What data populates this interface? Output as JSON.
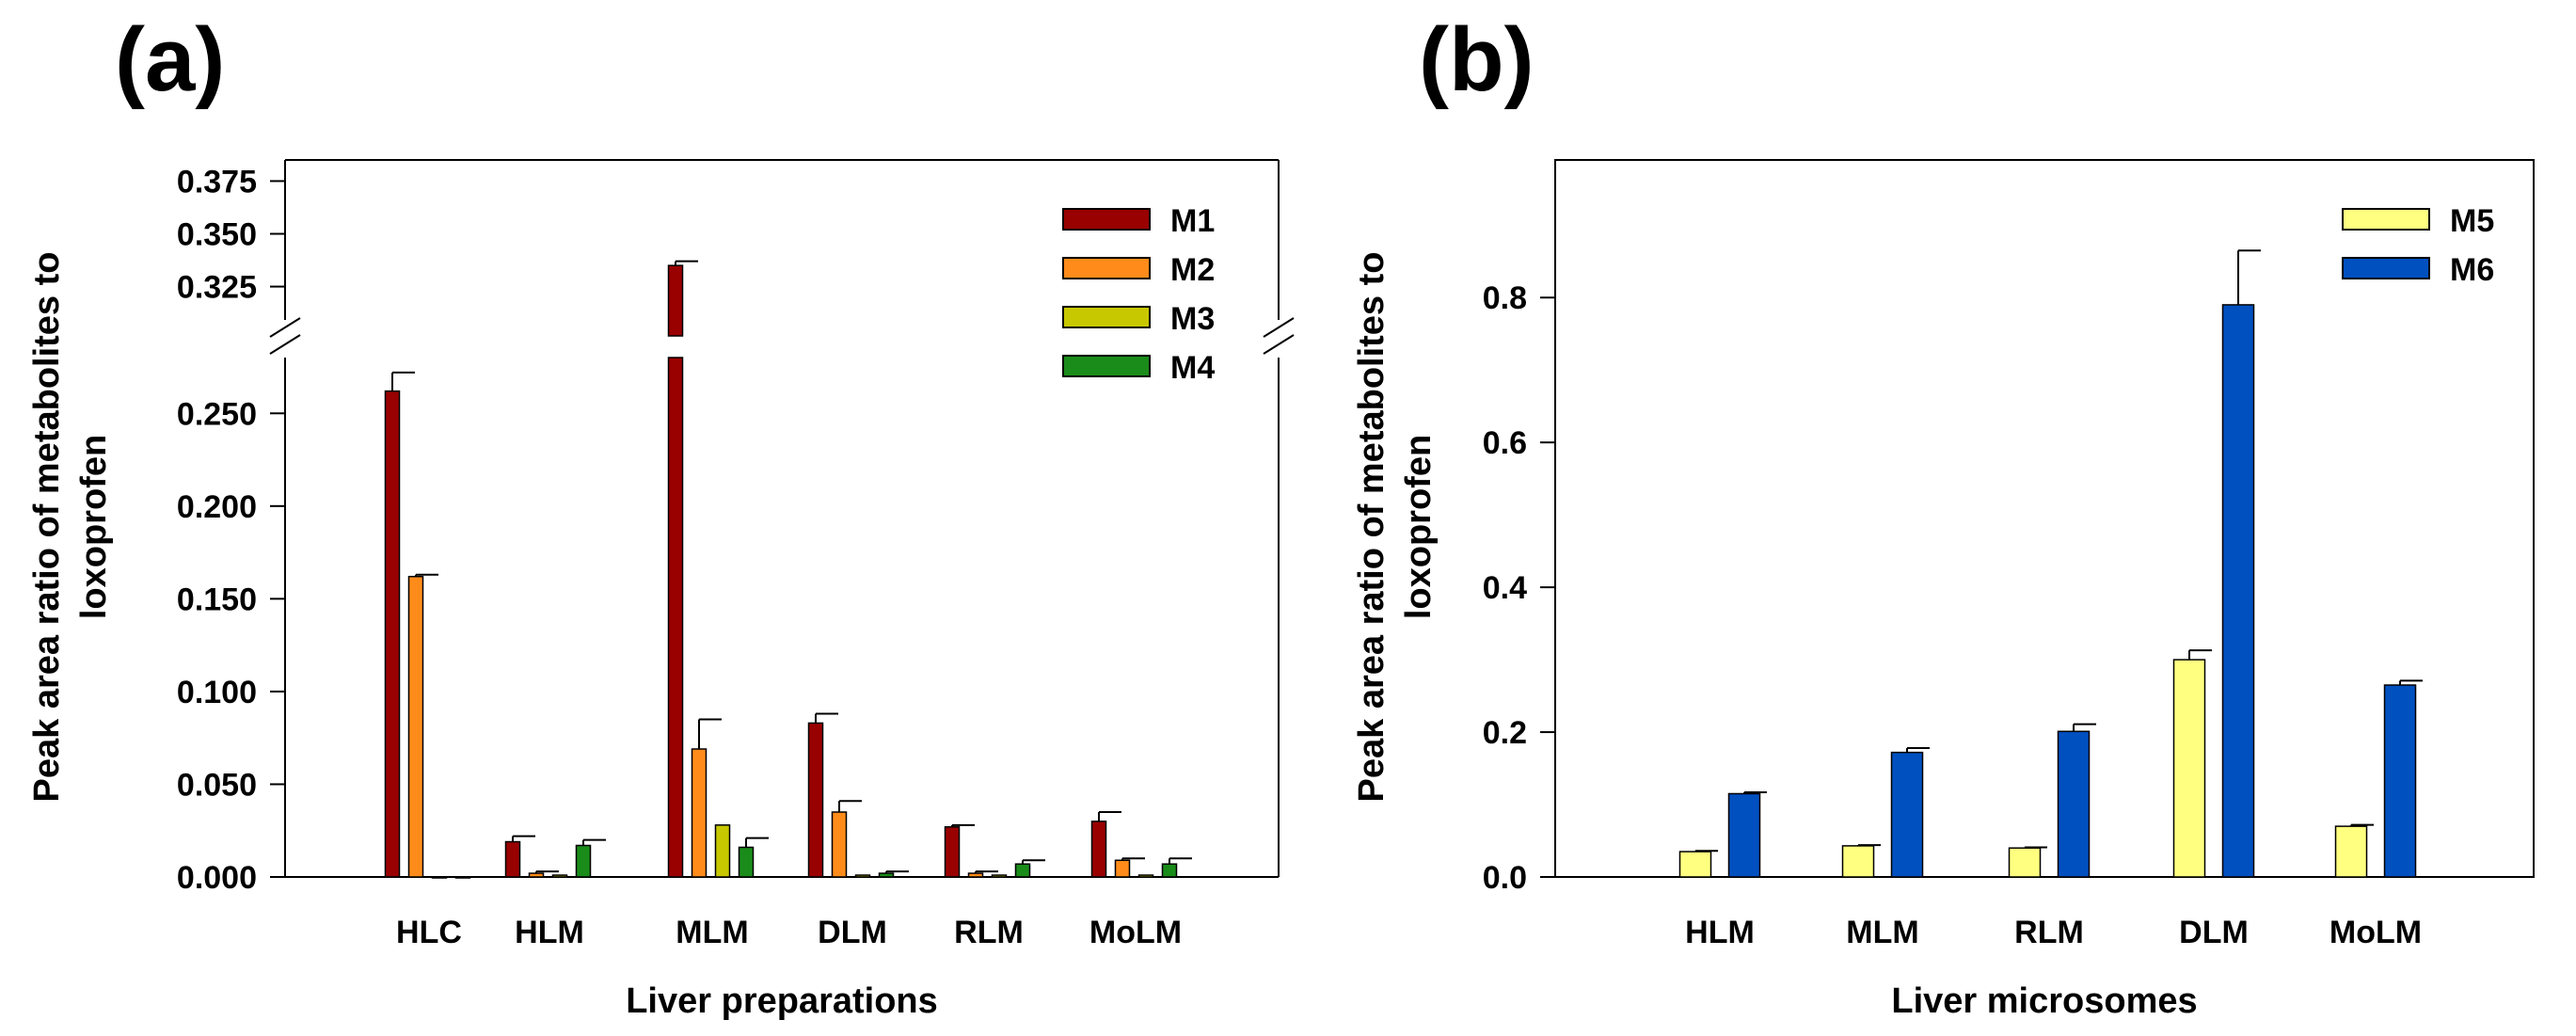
{
  "chart_data": [
    {
      "type": "bar",
      "panel_label": "(a)",
      "xlabel": "Liver preparations",
      "ylabel_lines": [
        "Peak area ratio of metabolites to",
        "loxoprofen"
      ],
      "categories": [
        "HLC",
        "HLM",
        "MLM",
        "DLM",
        "RLM",
        "MoLM"
      ],
      "y_axis_broken": true,
      "lower_range": [
        0,
        0.275
      ],
      "upper_range": [
        0.315,
        0.385
      ],
      "lower_ticks": [
        "0.000",
        "0.050",
        "0.100",
        "0.150",
        "0.200",
        "0.250"
      ],
      "upper_ticks": [
        "0.325",
        "0.350",
        "0.375"
      ],
      "legend_position": "top-right",
      "series": [
        {
          "name": "M1",
          "color": "#990000",
          "values": [
            0.262,
            0.019,
            0.335,
            0.083,
            0.027,
            0.03
          ],
          "errors": [
            0.01,
            0.003,
            0.002,
            0.005,
            0.001,
            0.005
          ]
        },
        {
          "name": "M2",
          "color": "#ff8c1a",
          "values": [
            0.162,
            0.002,
            0.069,
            0.035,
            0.002,
            0.009
          ],
          "errors": [
            0.001,
            0.001,
            0.016,
            0.006,
            0.001,
            0.001
          ]
        },
        {
          "name": "M3",
          "color": "#c8c800",
          "values": [
            0.0,
            0.001,
            0.028,
            0.001,
            0.001,
            0.001
          ],
          "errors": [
            0.0,
            0.0,
            0.0,
            0.0,
            0.0,
            0.0
          ]
        },
        {
          "name": "M4",
          "color": "#1a8c1a",
          "values": [
            0.0,
            0.017,
            0.016,
            0.002,
            0.007,
            0.007
          ],
          "errors": [
            0.0,
            0.003,
            0.005,
            0.001,
            0.002,
            0.003
          ]
        }
      ]
    },
    {
      "type": "bar",
      "panel_label": "(b)",
      "xlabel": "Liver microsomes",
      "ylabel_lines": [
        "Peak area ratio of metabolites to",
        "loxoprofen"
      ],
      "categories": [
        "HLM",
        "MLM",
        "RLM",
        "DLM",
        "MoLM"
      ],
      "ylim": [
        0,
        0.99
      ],
      "ticks": [
        "0.0",
        "0.2",
        "0.4",
        "0.6",
        "0.8"
      ],
      "legend_position": "top-right",
      "series": [
        {
          "name": "M5",
          "color": "#ffff80",
          "values": [
            0.035,
            0.043,
            0.04,
            0.3,
            0.07
          ],
          "errors": [
            0.001,
            0.001,
            0.001,
            0.013,
            0.002
          ]
        },
        {
          "name": "M6",
          "color": "#0050c0",
          "values": [
            0.115,
            0.172,
            0.201,
            0.79,
            0.265
          ],
          "errors": [
            0.002,
            0.006,
            0.01,
            0.075,
            0.006
          ]
        }
      ]
    }
  ]
}
